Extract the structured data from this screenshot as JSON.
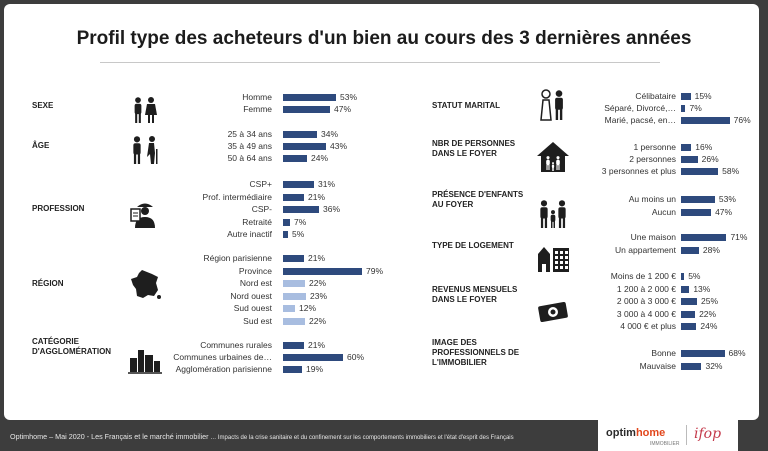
{
  "title": "Profil type des acheteurs d'un bien au cours des 3 dernières années",
  "footer": {
    "text_main": "Optimhome – Mai  2020 - Les Français et le marché immobilier",
    "text_small": " … Impacts de la crise sanitaire et du confinement sur les comportements immobiliers et l'état d'esprit des Français",
    "logo_optimhome_a": "optim",
    "logo_optimhome_b": "home",
    "logo_optimhome_sub": "IMMOBILIER",
    "logo_ifop": "ifop"
  },
  "colors": {
    "primary": "#2e4a7d",
    "light": "#a8bde0",
    "footer": "#3d3d3d"
  },
  "chart_data": [
    {
      "type": "bar",
      "category": "SEXE",
      "icon": "couple-icon",
      "categories": [
        "Homme",
        "Femme"
      ],
      "values": [
        53,
        47
      ],
      "unit": "%"
    },
    {
      "type": "bar",
      "category": "ÂGE",
      "icon": "ages-icon",
      "categories": [
        "25 à 34 ans",
        "35 à 49 ans",
        "50 à 64 ans"
      ],
      "values": [
        34,
        43,
        24
      ],
      "unit": "%"
    },
    {
      "type": "bar",
      "category": "PROFESSION",
      "icon": "worker-icon",
      "categories": [
        "CSP+",
        "Prof. intermédiaire",
        "CSP-",
        "Retraité",
        "Autre inactif"
      ],
      "values": [
        31,
        21,
        36,
        7,
        5
      ],
      "unit": "%"
    },
    {
      "type": "bar",
      "category": "RÉGION",
      "icon": "france-map-icon",
      "categories": [
        "Région parisienne",
        "Province",
        "Nord est",
        "Nord ouest",
        "Sud ouest",
        "Sud est"
      ],
      "values": [
        21,
        79,
        22,
        23,
        12,
        22
      ],
      "unit": "%",
      "subcategories": [
        false,
        false,
        true,
        true,
        true,
        true
      ]
    },
    {
      "type": "bar",
      "category": "CATÉGORIE D'AGGLOMÉRATION",
      "icon": "city-icon",
      "categories": [
        "Communes rurales",
        "Communes urbaines de…",
        "Agglomération parisienne"
      ],
      "values": [
        21,
        60,
        19
      ],
      "unit": "%"
    },
    {
      "type": "bar",
      "category": "STATUT MARITAL",
      "icon": "wedding-icon",
      "categories": [
        "Célibataire",
        "Séparé, Divorcé,…",
        "Marié, pacsé, en…"
      ],
      "values": [
        15,
        7,
        76
      ],
      "unit": "%"
    },
    {
      "type": "bar",
      "category": "NBR DE PERSONNES DANS LE FOYER",
      "icon": "house-family-icon",
      "categories": [
        "1 personne",
        "2 personnes",
        "3 personnes et plus"
      ],
      "values": [
        16,
        26,
        58
      ],
      "unit": "%"
    },
    {
      "type": "bar",
      "category": "PRÉSENCE D'ENFANTS AU FOYER",
      "icon": "family-icon",
      "categories": [
        "Au moins un",
        "Aucun"
      ],
      "values": [
        53,
        47
      ],
      "unit": "%"
    },
    {
      "type": "bar",
      "category": "TYPE DE LOGEMENT",
      "icon": "buildings-icon",
      "categories": [
        "Une maison",
        "Un appartement"
      ],
      "values": [
        71,
        28
      ],
      "unit": "%"
    },
    {
      "type": "bar",
      "category": "REVENUS MENSUELS DANS LE FOYER",
      "icon": "money-icon",
      "categories": [
        "Moins de 1 200 €",
        "1 200 à 2 000 €",
        "2 000 à 3 000 €",
        "3 000 à 4 000 €",
        "4 000 € et plus"
      ],
      "values": [
        5,
        13,
        25,
        22,
        24
      ],
      "unit": "%"
    },
    {
      "type": "bar",
      "category": "IMAGE DES PROFESSIONNELS DE L'IMMOBILIER",
      "icon": "",
      "categories": [
        "Bonne",
        "Mauvaise"
      ],
      "values": [
        68,
        32
      ],
      "unit": "%"
    }
  ]
}
